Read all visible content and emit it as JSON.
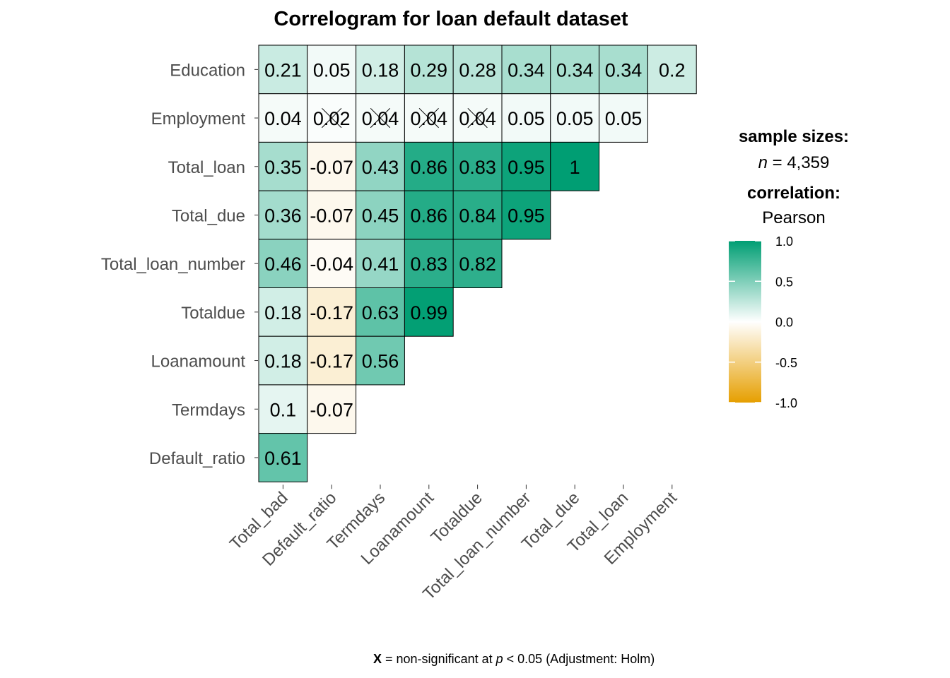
{
  "chart_data": {
    "type": "heatmap",
    "title": "Correlogram for loan default dataset",
    "x_categories": [
      "Total_bad",
      "Default_ratio",
      "Termdays",
      "Loanamount",
      "Totaldue",
      "Total_loan_number",
      "Total_due",
      "Total_loan",
      "Employment"
    ],
    "y_categories": [
      "Education",
      "Employment",
      "Total_loan",
      "Total_due",
      "Total_loan_number",
      "Totaldue",
      "Loanamount",
      "Termdays",
      "Default_ratio"
    ],
    "values": [
      [
        0.21,
        0.05,
        0.18,
        0.29,
        0.28,
        0.34,
        0.34,
        0.34,
        0.2
      ],
      [
        0.04,
        0.02,
        0.04,
        0.04,
        0.04,
        0.05,
        0.05,
        0.05,
        null
      ],
      [
        0.35,
        -0.07,
        0.43,
        0.86,
        0.83,
        0.95,
        1,
        null,
        null
      ],
      [
        0.36,
        -0.07,
        0.45,
        0.86,
        0.84,
        0.95,
        null,
        null,
        null
      ],
      [
        0.46,
        -0.04,
        0.41,
        0.83,
        0.82,
        null,
        null,
        null,
        null
      ],
      [
        0.18,
        -0.17,
        0.63,
        0.99,
        null,
        null,
        null,
        null,
        null
      ],
      [
        0.18,
        -0.17,
        0.56,
        null,
        null,
        null,
        null,
        null,
        null
      ],
      [
        0.1,
        -0.07,
        null,
        null,
        null,
        null,
        null,
        null,
        null
      ],
      [
        0.61,
        null,
        null,
        null,
        null,
        null,
        null,
        null,
        null
      ]
    ],
    "labels": [
      [
        "0.21",
        "0.05",
        "0.18",
        "0.29",
        "0.28",
        "0.34",
        "0.34",
        "0.34",
        "0.2"
      ],
      [
        "0.04",
        "0.02",
        "0.04",
        "0.04",
        "0.04",
        "0.05",
        "0.05",
        "0.05",
        null
      ],
      [
        "0.35",
        "-0.07",
        "0.43",
        "0.86",
        "0.83",
        "0.95",
        "1",
        null,
        null
      ],
      [
        "0.36",
        "-0.07",
        "0.45",
        "0.86",
        "0.84",
        "0.95",
        null,
        null,
        null
      ],
      [
        "0.46",
        "-0.04",
        "0.41",
        "0.83",
        "0.82",
        null,
        null,
        null,
        null
      ],
      [
        "0.18",
        "-0.17",
        "0.63",
        "0.99",
        null,
        null,
        null,
        null,
        null
      ],
      [
        "0.18",
        "-0.17",
        "0.56",
        null,
        null,
        null,
        null,
        null,
        null
      ],
      [
        "0.1",
        "-0.07",
        null,
        null,
        null,
        null,
        null,
        null,
        null
      ],
      [
        "0.61",
        null,
        null,
        null,
        null,
        null,
        null,
        null,
        null
      ]
    ],
    "non_significant": [
      [
        1,
        1
      ],
      [
        1,
        2
      ],
      [
        1,
        3
      ],
      [
        1,
        4
      ]
    ],
    "color_scale": {
      "low_color": "#E69F00",
      "mid_color": "#FFFFFF",
      "high_color": "#009E73",
      "limits": [
        -1.0,
        1.0
      ],
      "ticks": [
        "1.0",
        "0.5",
        "0.0",
        "-0.5",
        "-1.0"
      ]
    },
    "legend": {
      "sample_sizes_heading": "sample sizes:",
      "n_symbol": "n",
      "n_value": " = 4,359",
      "correlation_heading": "correlation:",
      "correlation_method": "Pearson"
    },
    "caption": {
      "x_mark": "X",
      "text_1": " = non-significant at ",
      "p_symbol": "p",
      "text_2": " < 0.05 (Adjustment: Holm)"
    }
  }
}
